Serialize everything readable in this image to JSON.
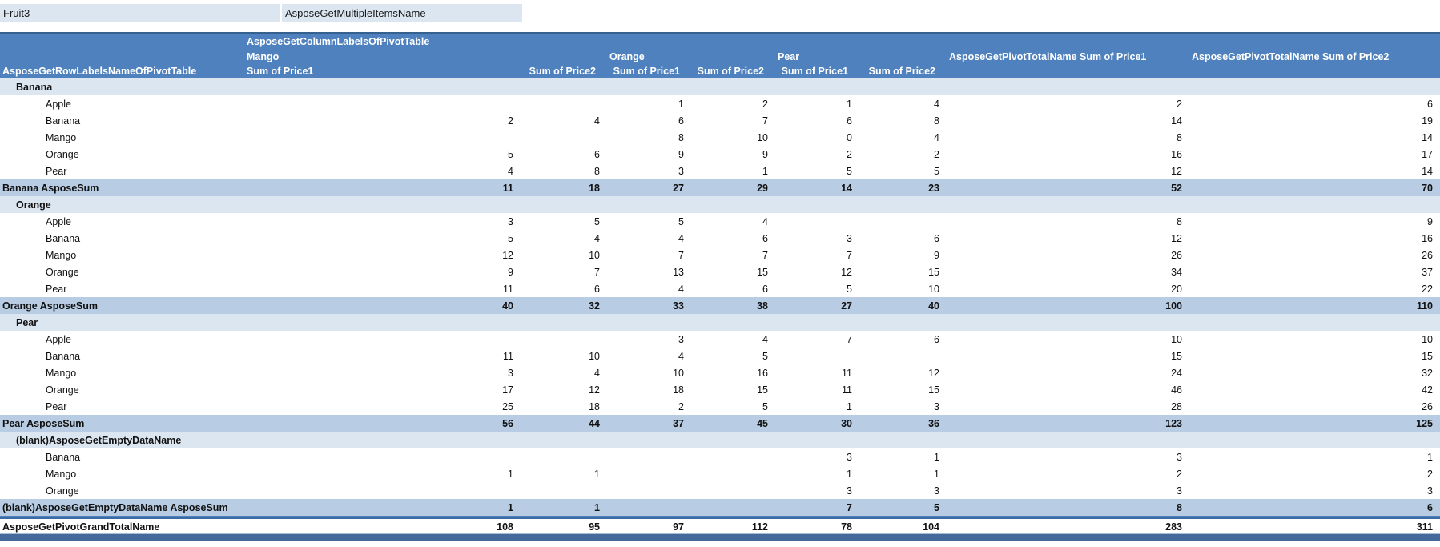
{
  "filter_row": {
    "field_label": "Fruit3",
    "value_label": "AsposeGetMultipleItemsName"
  },
  "header": {
    "column_labels_title": "AsposeGetColumnLabelsOfPivotTable",
    "row_labels_title": "AsposeGetRowLabelsNameOfPivotTable",
    "groups": [
      {
        "label": "Mango"
      },
      {
        "label": "Orange"
      },
      {
        "label": "Pear"
      }
    ],
    "total_columns": [
      "AsposeGetPivotTotalName Sum of Price1",
      "AsposeGetPivotTotalName Sum of Price2"
    ],
    "measure_labels": [
      "Sum of Price1",
      "Sum of Price2",
      "Sum of Price1",
      "Sum of Price2",
      "Sum of Price1",
      "Sum of Price2"
    ]
  },
  "rows": [
    {
      "type": "group",
      "label": "Banana",
      "values": [
        "",
        "",
        "",
        "",
        "",
        "",
        "",
        ""
      ]
    },
    {
      "type": "item",
      "label": "Apple",
      "values": [
        "",
        "",
        "1",
        "2",
        "1",
        "4",
        "2",
        "6"
      ]
    },
    {
      "type": "item",
      "label": "Banana",
      "values": [
        "2",
        "4",
        "6",
        "7",
        "6",
        "8",
        "14",
        "19"
      ]
    },
    {
      "type": "item",
      "label": "Mango",
      "values": [
        "",
        "",
        "8",
        "10",
        "0",
        "4",
        "8",
        "14"
      ]
    },
    {
      "type": "item",
      "label": "Orange",
      "values": [
        "5",
        "6",
        "9",
        "9",
        "2",
        "2",
        "16",
        "17"
      ]
    },
    {
      "type": "item",
      "label": "Pear",
      "values": [
        "4",
        "8",
        "3",
        "1",
        "5",
        "5",
        "12",
        "14"
      ]
    },
    {
      "type": "subtotal",
      "label": "Banana AsposeSum",
      "values": [
        "11",
        "18",
        "27",
        "29",
        "14",
        "23",
        "52",
        "70"
      ]
    },
    {
      "type": "group",
      "label": "Orange",
      "values": [
        "",
        "",
        "",
        "",
        "",
        "",
        "",
        ""
      ]
    },
    {
      "type": "item",
      "label": "Apple",
      "values": [
        "3",
        "5",
        "5",
        "4",
        "",
        "",
        "8",
        "9"
      ]
    },
    {
      "type": "item",
      "label": "Banana",
      "values": [
        "5",
        "4",
        "4",
        "6",
        "3",
        "6",
        "12",
        "16"
      ]
    },
    {
      "type": "item",
      "label": "Mango",
      "values": [
        "12",
        "10",
        "7",
        "7",
        "7",
        "9",
        "26",
        "26"
      ]
    },
    {
      "type": "item",
      "label": "Orange",
      "values": [
        "9",
        "7",
        "13",
        "15",
        "12",
        "15",
        "34",
        "37"
      ]
    },
    {
      "type": "item",
      "label": "Pear",
      "values": [
        "11",
        "6",
        "4",
        "6",
        "5",
        "10",
        "20",
        "22"
      ]
    },
    {
      "type": "subtotal",
      "label": "Orange AsposeSum",
      "values": [
        "40",
        "32",
        "33",
        "38",
        "27",
        "40",
        "100",
        "110"
      ]
    },
    {
      "type": "group",
      "label": "Pear",
      "values": [
        "",
        "",
        "",
        "",
        "",
        "",
        "",
        ""
      ]
    },
    {
      "type": "item",
      "label": "Apple",
      "values": [
        "",
        "",
        "3",
        "4",
        "7",
        "6",
        "10",
        "10"
      ]
    },
    {
      "type": "item",
      "label": "Banana",
      "values": [
        "11",
        "10",
        "4",
        "5",
        "",
        "",
        "15",
        "15"
      ]
    },
    {
      "type": "item",
      "label": "Mango",
      "values": [
        "3",
        "4",
        "10",
        "16",
        "11",
        "12",
        "24",
        "32"
      ]
    },
    {
      "type": "item",
      "label": "Orange",
      "values": [
        "17",
        "12",
        "18",
        "15",
        "11",
        "15",
        "46",
        "42"
      ]
    },
    {
      "type": "item",
      "label": "Pear",
      "values": [
        "25",
        "18",
        "2",
        "5",
        "1",
        "3",
        "28",
        "26"
      ]
    },
    {
      "type": "subtotal",
      "label": "Pear AsposeSum",
      "values": [
        "56",
        "44",
        "37",
        "45",
        "30",
        "36",
        "123",
        "125"
      ]
    },
    {
      "type": "group",
      "label": "(blank)AsposeGetEmptyDataName",
      "values": [
        "",
        "",
        "",
        "",
        "",
        "",
        "",
        ""
      ]
    },
    {
      "type": "item",
      "label": "Banana",
      "values": [
        "",
        "",
        "",
        "",
        "3",
        "1",
        "3",
        "1"
      ]
    },
    {
      "type": "item",
      "label": "Mango",
      "values": [
        "1",
        "1",
        "",
        "",
        "1",
        "1",
        "2",
        "2"
      ]
    },
    {
      "type": "item",
      "label": "Orange",
      "values": [
        "",
        "",
        "",
        "",
        "3",
        "3",
        "3",
        "3"
      ]
    },
    {
      "type": "subtotal",
      "label": "(blank)AsposeGetEmptyDataName AsposeSum",
      "values": [
        "1",
        "1",
        "",
        "",
        "7",
        "5",
        "8",
        "6"
      ]
    },
    {
      "type": "grand",
      "label": "AsposeGetPivotGrandTotalName",
      "values": [
        "108",
        "95",
        "97",
        "112",
        "78",
        "104",
        "283",
        "311"
      ]
    }
  ],
  "colors": {
    "header_bg": "#4e81bd",
    "header_text": "#ffffff",
    "subtotal_bg": "#b8cce4",
    "group_row_bg": "#dce6f1",
    "filter_cell_bg": "#dce6f1",
    "accent_border": "#36618e",
    "bottom_band": "#46699c"
  }
}
